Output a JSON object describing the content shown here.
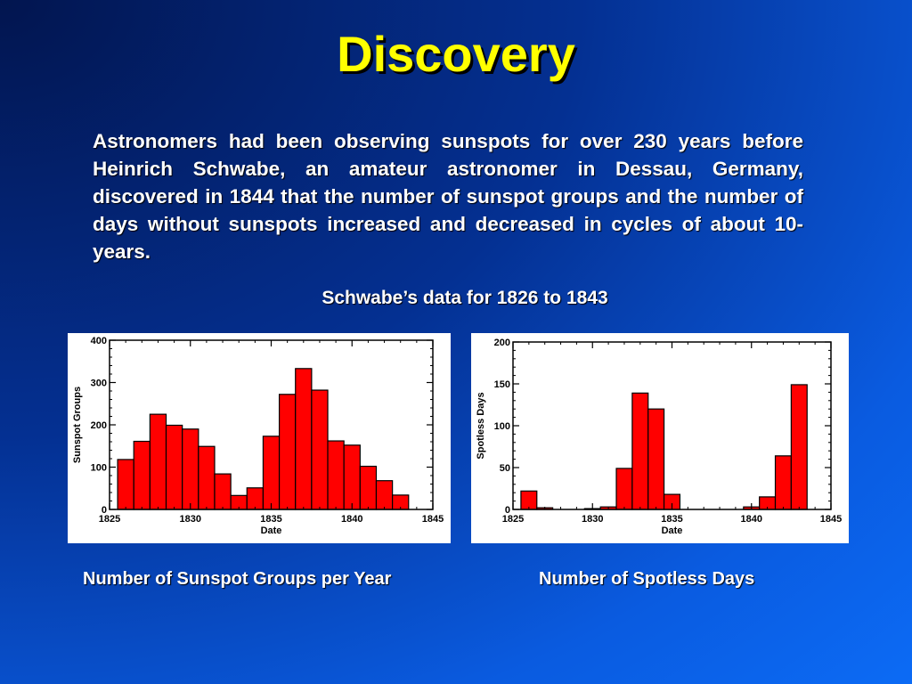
{
  "slide": {
    "title": "Discovery",
    "body": "Astronomers had been observing sunspots for over 230 years before Heinrich Schwabe, an amateur astronomer in Dessau, Germany, discovered in 1844 that the number of sunspot groups and the number of days without sunspots increased and decreased in cycles of about 10-years.",
    "subtitle": "Schwabe’s data for 1826 to 1843",
    "caption_left": "Number of Sunspot Groups per Year",
    "caption_right": "Number of Spotless Days",
    "colors": {
      "title": "#ffff00",
      "bar": "#ff0000",
      "text": "#ffffff"
    }
  },
  "chart_data": [
    {
      "type": "bar",
      "xlabel": "Date",
      "ylabel": "Sunspot Groups",
      "xlim": [
        1825,
        1845
      ],
      "ylim": [
        0,
        400
      ],
      "xticks": [
        "1825",
        "1830",
        "1835",
        "1840",
        "1845"
      ],
      "yticks": [
        "0",
        "100",
        "200",
        "300",
        "400"
      ],
      "x": [
        1826,
        1827,
        1828,
        1829,
        1830,
        1831,
        1832,
        1833,
        1834,
        1835,
        1836,
        1837,
        1838,
        1839,
        1840,
        1841,
        1842,
        1843
      ],
      "values": [
        118,
        161,
        225,
        199,
        190,
        149,
        84,
        33,
        51,
        173,
        272,
        333,
        282,
        162,
        152,
        102,
        68,
        34
      ]
    },
    {
      "type": "bar",
      "xlabel": "Date",
      "ylabel": "Spotless Days",
      "xlim": [
        1825,
        1845
      ],
      "ylim": [
        0,
        200
      ],
      "xticks": [
        "1825",
        "1830",
        "1835",
        "1840",
        "1845"
      ],
      "yticks": [
        "0",
        "50",
        "100",
        "150",
        "200"
      ],
      "x": [
        1826,
        1827,
        1828,
        1829,
        1830,
        1831,
        1832,
        1833,
        1834,
        1835,
        1836,
        1837,
        1838,
        1839,
        1840,
        1841,
        1842,
        1843
      ],
      "values": [
        22,
        2,
        0,
        0,
        1,
        3,
        49,
        139,
        120,
        18,
        0,
        0,
        0,
        0,
        3,
        15,
        64,
        149
      ]
    }
  ]
}
